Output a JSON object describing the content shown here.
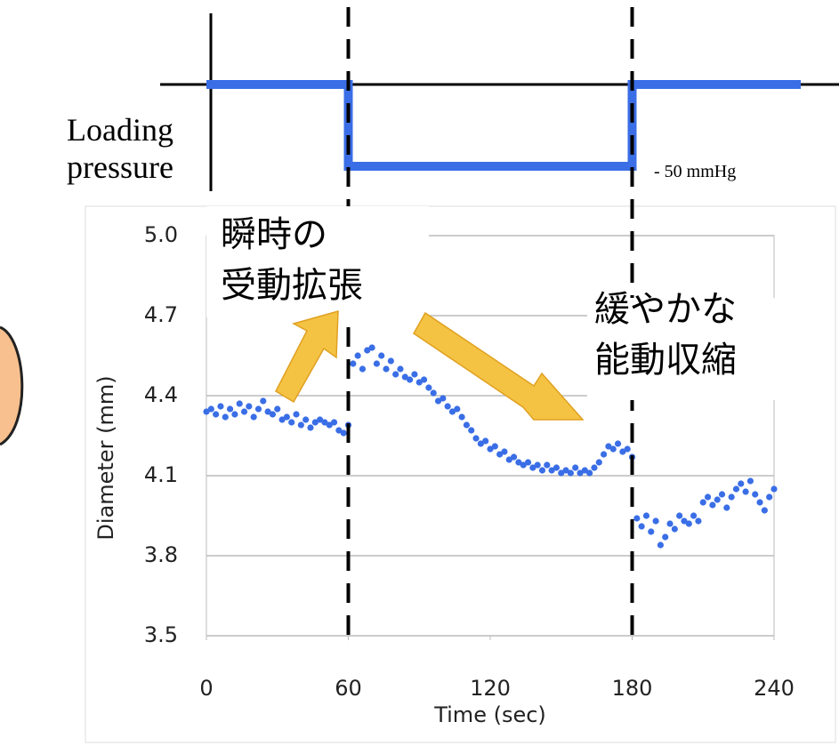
{
  "chart_data": {
    "type": "scatter",
    "xlabel": "Time (sec)",
    "ylabel": "Diameter (mm)",
    "xlim": [
      0,
      240
    ],
    "xticks": [
      0,
      60,
      120,
      180,
      240
    ],
    "ylim": [
      3.5,
      5.0
    ],
    "yticks": [
      {
        "value": 5.0,
        "label": "5.0"
      },
      4.7,
      4.4,
      4.1,
      3.8,
      3.5
    ],
    "grid": true,
    "markers": [
      60,
      180
    ],
    "pressure_label": [
      "Loading",
      "pressure"
    ],
    "pressure_annotation": "- 50 mmHg",
    "annotations": [
      [
        "瞬時の",
        "受動拡張"
      ],
      [
        "緩やかな",
        "能動収縮"
      ]
    ],
    "series": [
      {
        "color": "#3a6ee6",
        "x": [
          0,
          2,
          4,
          6,
          8,
          10,
          12,
          14,
          16,
          18,
          20,
          22,
          24,
          26,
          28,
          30,
          32,
          34,
          36,
          38,
          40,
          42,
          44,
          46,
          48,
          50,
          52,
          54,
          56,
          58,
          60,
          62,
          64,
          66,
          68,
          70,
          72,
          74,
          76,
          78,
          80,
          82,
          84,
          86,
          88,
          90,
          92,
          94,
          96,
          98,
          100,
          102,
          104,
          106,
          108,
          110,
          112,
          114,
          116,
          118,
          120,
          122,
          124,
          126,
          128,
          130,
          132,
          134,
          136,
          138,
          140,
          142,
          144,
          146,
          148,
          150,
          152,
          154,
          156,
          158,
          160,
          162,
          164,
          166,
          168,
          170,
          172,
          174,
          176,
          178,
          180,
          182,
          184,
          186,
          188,
          190,
          192,
          194,
          196,
          198,
          200,
          202,
          204,
          206,
          208,
          210,
          212,
          214,
          216,
          218,
          220,
          222,
          224,
          226,
          228,
          230,
          232,
          234,
          236,
          238,
          240
        ],
        "values": [
          4.34,
          4.35,
          4.33,
          4.36,
          4.32,
          4.35,
          4.33,
          4.37,
          4.34,
          4.36,
          4.32,
          4.35,
          4.38,
          4.34,
          4.33,
          4.35,
          4.31,
          4.32,
          4.3,
          4.33,
          4.29,
          4.31,
          4.28,
          4.3,
          4.31,
          4.3,
          4.29,
          4.3,
          4.27,
          4.26,
          4.29,
          4.52,
          4.55,
          4.5,
          4.57,
          4.58,
          4.52,
          4.55,
          4.5,
          4.53,
          4.48,
          4.5,
          4.47,
          4.46,
          4.48,
          4.45,
          4.46,
          4.43,
          4.41,
          4.38,
          4.39,
          4.36,
          4.34,
          4.35,
          4.32,
          4.29,
          4.27,
          4.24,
          4.22,
          4.23,
          4.2,
          4.21,
          4.18,
          4.19,
          4.16,
          4.17,
          4.15,
          4.14,
          4.15,
          4.13,
          4.14,
          4.12,
          4.14,
          4.12,
          4.13,
          4.11,
          4.12,
          4.11,
          4.13,
          4.11,
          4.12,
          4.11,
          4.13,
          4.15,
          4.18,
          4.21,
          4.2,
          4.22,
          4.19,
          4.2,
          4.17,
          3.94,
          3.91,
          3.95,
          3.89,
          3.93,
          3.84,
          3.87,
          3.92,
          3.9,
          3.95,
          3.93,
          3.92,
          3.95,
          3.93,
          4.0,
          4.02,
          3.99,
          4.01,
          4.03,
          3.98,
          4.02,
          4.05,
          4.07,
          4.04,
          4.08,
          4.03,
          4.0,
          3.97,
          4.02,
          4.05
        ]
      }
    ]
  }
}
